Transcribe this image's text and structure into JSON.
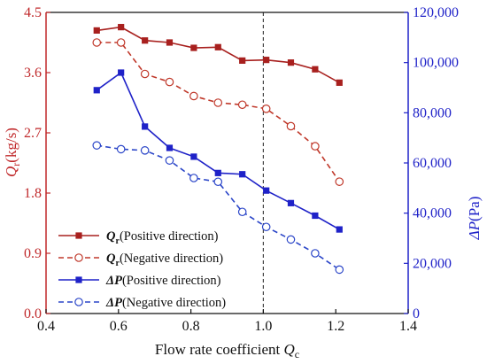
{
  "chart_data": {
    "type": "line",
    "xlabel": "Flow rate coefficient",
    "xlabel_symbol": "Q",
    "xlabel_sub": "c",
    "ylabel_left_symbol": "Q",
    "ylabel_left_sub": "r",
    "ylabel_left_unit": "(kg/s)",
    "ylabel_right_symbol": "ΔP",
    "ylabel_right_unit": "(Pa)",
    "xlim": [
      0.4,
      1.4
    ],
    "ylim_left": [
      0.0,
      4.5
    ],
    "ylim_right": [
      0,
      120000
    ],
    "x_ticks": [
      "0.4",
      "0.6",
      "0.8",
      "1.0",
      "1.2",
      "1.4"
    ],
    "y_left_ticks": [
      "0.0",
      "0.9",
      "1.8",
      "2.7",
      "3.6",
      "4.5"
    ],
    "y_right_ticks": [
      "0",
      "20,000",
      "40,000",
      "60,000",
      "80,000",
      "100,000",
      "120,000"
    ],
    "reference_line_x": 1.0,
    "grid": false,
    "legend_position": "lower-left",
    "series": [
      {
        "name": "Qr (Positive direction)",
        "symbol": "Q",
        "sub": "r",
        "direction": "(Positive direction)",
        "axis": "left",
        "color": "#a8201e",
        "marker": "square-filled",
        "dashed": false,
        "x": [
          0.54,
          0.607,
          0.673,
          0.741,
          0.808,
          0.875,
          0.942,
          1.008,
          1.076,
          1.143,
          1.21
        ],
        "y": [
          4.23,
          4.28,
          4.08,
          4.05,
          3.97,
          3.98,
          3.78,
          3.79,
          3.75,
          3.65,
          3.45
        ]
      },
      {
        "name": "Qr (Negative direction)",
        "symbol": "Q",
        "sub": "r",
        "direction": "(Negative direction)",
        "axis": "left",
        "color": "#c0392b",
        "marker": "circle-open",
        "dashed": true,
        "x": [
          0.54,
          0.607,
          0.673,
          0.741,
          0.808,
          0.875,
          0.942,
          1.008,
          1.076,
          1.143,
          1.21
        ],
        "y": [
          4.05,
          4.05,
          3.58,
          3.46,
          3.25,
          3.15,
          3.12,
          3.06,
          2.8,
          2.5,
          1.97
        ]
      },
      {
        "name": "ΔP (Positive direction)",
        "symbol": "ΔP",
        "sub": "",
        "direction": "(Positive direction)",
        "axis": "right",
        "color": "#1f22c8",
        "marker": "square-filled",
        "dashed": false,
        "x": [
          0.54,
          0.607,
          0.673,
          0.741,
          0.808,
          0.875,
          0.942,
          1.008,
          1.076,
          1.143,
          1.21
        ],
        "y": [
          89000,
          96000,
          74500,
          66000,
          62500,
          56000,
          55500,
          49000,
          44000,
          39000,
          33500
        ]
      },
      {
        "name": "ΔP (Negative direction)",
        "symbol": "ΔP",
        "sub": "",
        "direction": "(Negative direction)",
        "axis": "right",
        "color": "#2a45c8",
        "marker": "circle-open",
        "dashed": true,
        "x": [
          0.54,
          0.607,
          0.673,
          0.741,
          0.808,
          0.875,
          0.942,
          1.008,
          1.076,
          1.143,
          1.21
        ],
        "y": [
          67000,
          65500,
          65000,
          61000,
          54000,
          52500,
          40500,
          34500,
          29500,
          24000,
          17500
        ]
      }
    ]
  }
}
